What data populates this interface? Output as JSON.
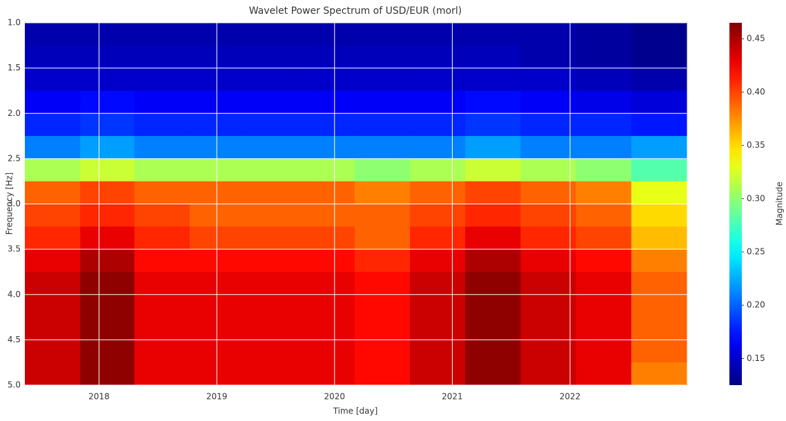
{
  "chart_data": {
    "type": "heatmap",
    "title": "Wavelet Power Spectrum of USD/EUR (morl)",
    "x_label": "Time [day]",
    "y_label": "Frequency [Hz]",
    "colorbar_label": "Magnitude",
    "colormap": "jet",
    "grid": true,
    "xlim": [
      2017.37,
      2022.99
    ],
    "xticks": [
      2018,
      2019,
      2020,
      2021,
      2022
    ],
    "ylim": [
      1.0,
      5.0
    ],
    "y_inverted": true,
    "yticks": [
      {
        "value": 1,
        "label": "1.0"
      },
      1.5,
      {
        "value": 2,
        "label": "2.0"
      },
      2.5,
      {
        "value": 3,
        "label": "3.0"
      },
      3.5,
      {
        "value": 4,
        "label": "4.0"
      },
      4.5,
      {
        "value": 5,
        "label": "5.0"
      }
    ],
    "clim": [
      0.125,
      0.465
    ],
    "cticks": [
      0.15,
      {
        "value": 0.2,
        "label": "0.20"
      },
      0.25,
      {
        "value": 0.3,
        "label": "0.30"
      },
      0.35,
      {
        "value": 0.4,
        "label": "0.40"
      },
      0.45
    ],
    "xbins": [
      2017.37,
      2017.84,
      2018.3,
      2018.77,
      2019.24,
      2019.71,
      2020.17,
      2020.64,
      2021.11,
      2021.58,
      2022.05,
      2022.52,
      2022.99
    ],
    "ybins": [
      1.0,
      1.25,
      1.5,
      1.75,
      2.0,
      2.25,
      2.5,
      2.75,
      3.0,
      3.25,
      3.5,
      3.75,
      4.0,
      4.25,
      4.5,
      4.75,
      5.0
    ],
    "z": [
      [
        0.14,
        0.14,
        0.14,
        0.14,
        0.14,
        0.14,
        0.14,
        0.14,
        0.14,
        0.14,
        0.135,
        0.13
      ],
      [
        0.145,
        0.145,
        0.145,
        0.145,
        0.145,
        0.145,
        0.145,
        0.145,
        0.145,
        0.14,
        0.135,
        0.13
      ],
      [
        0.15,
        0.15,
        0.15,
        0.15,
        0.15,
        0.15,
        0.15,
        0.15,
        0.15,
        0.15,
        0.145,
        0.14
      ],
      [
        0.165,
        0.17,
        0.165,
        0.165,
        0.165,
        0.165,
        0.165,
        0.165,
        0.17,
        0.165,
        0.16,
        0.155
      ],
      [
        0.18,
        0.185,
        0.18,
        0.18,
        0.18,
        0.18,
        0.18,
        0.18,
        0.185,
        0.18,
        0.18,
        0.175
      ],
      [
        0.21,
        0.22,
        0.21,
        0.21,
        0.21,
        0.21,
        0.21,
        0.21,
        0.22,
        0.21,
        0.21,
        0.22
      ],
      [
        0.31,
        0.32,
        0.31,
        0.31,
        0.31,
        0.31,
        0.3,
        0.31,
        0.32,
        0.31,
        0.3,
        0.28
      ],
      [
        0.39,
        0.4,
        0.39,
        0.39,
        0.39,
        0.39,
        0.38,
        0.39,
        0.4,
        0.39,
        0.38,
        0.33
      ],
      [
        0.4,
        0.41,
        0.4,
        0.39,
        0.39,
        0.39,
        0.39,
        0.4,
        0.41,
        0.4,
        0.39,
        0.35
      ],
      [
        0.41,
        0.43,
        0.41,
        0.4,
        0.4,
        0.4,
        0.39,
        0.41,
        0.43,
        0.41,
        0.4,
        0.36
      ],
      [
        0.43,
        0.45,
        0.42,
        0.42,
        0.42,
        0.42,
        0.41,
        0.43,
        0.45,
        0.43,
        0.42,
        0.38
      ],
      [
        0.44,
        0.46,
        0.43,
        0.43,
        0.43,
        0.43,
        0.42,
        0.44,
        0.46,
        0.44,
        0.43,
        0.39
      ],
      [
        0.44,
        0.46,
        0.43,
        0.43,
        0.43,
        0.43,
        0.42,
        0.44,
        0.46,
        0.44,
        0.43,
        0.39
      ],
      [
        0.44,
        0.46,
        0.43,
        0.43,
        0.43,
        0.43,
        0.42,
        0.44,
        0.46,
        0.44,
        0.43,
        0.39
      ],
      [
        0.44,
        0.46,
        0.43,
        0.43,
        0.43,
        0.43,
        0.42,
        0.44,
        0.46,
        0.44,
        0.43,
        0.39
      ],
      [
        0.44,
        0.46,
        0.43,
        0.43,
        0.43,
        0.43,
        0.42,
        0.44,
        0.46,
        0.44,
        0.43,
        0.38
      ]
    ]
  }
}
